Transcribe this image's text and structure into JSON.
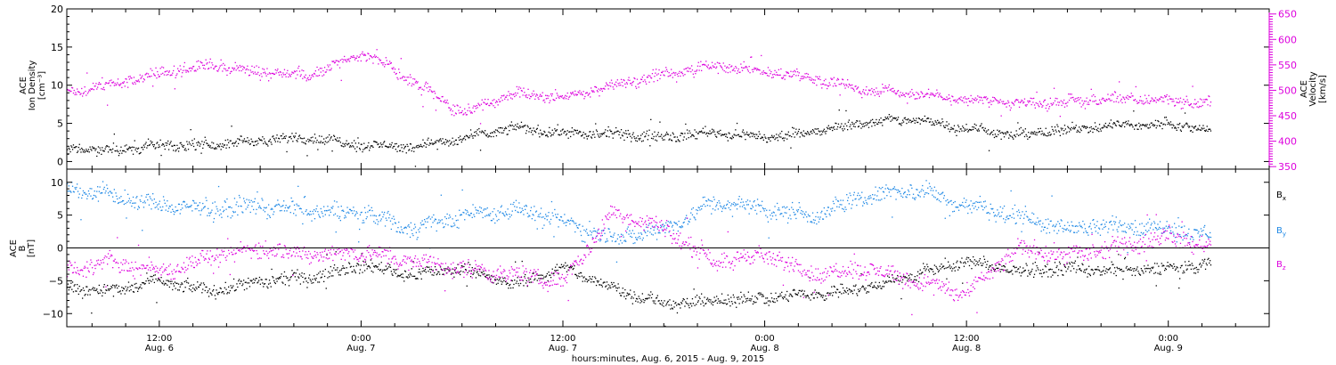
{
  "colors": {
    "density": "#000000",
    "velocity": "#dd00dd",
    "bx": "#000000",
    "by": "#1e88e5",
    "bz": "#dd00dd",
    "axis": "#000000"
  },
  "xaxis": {
    "title": "hours:minutes, Aug.  6, 2015 - Aug.  9, 2015",
    "range_hours_from_aug6_0000": [
      6.5,
      78.0
    ],
    "tick_labels": [
      {
        "time": "12:00",
        "date": "Aug. 6"
      },
      {
        "time": "0:00",
        "date": "Aug. 7"
      },
      {
        "time": "12:00",
        "date": "Aug. 7"
      },
      {
        "time": "0:00",
        "date": "Aug. 8"
      },
      {
        "time": "12:00",
        "date": "Aug. 8"
      },
      {
        "time": "0:00",
        "date": "Aug. 9"
      }
    ]
  },
  "top_panel": {
    "left_axis_label": [
      "ACE",
      "Ion Density",
      "[cm⁻³]"
    ],
    "right_axis_label": [
      "ACE",
      "Velocity",
      "[km/s]"
    ],
    "left_ticks": [
      "0",
      "5",
      "10",
      "15",
      "20"
    ],
    "right_ticks": [
      "350",
      "400",
      "450",
      "500",
      "550",
      "600",
      "650"
    ]
  },
  "bottom_panel": {
    "left_axis_label": [
      "ACE",
      "B",
      "[nT]"
    ],
    "left_ticks": [
      "−10",
      "−5",
      "0",
      "5",
      "10"
    ],
    "legend": [
      {
        "label": "B",
        "sub": "x",
        "color_key": "bx"
      },
      {
        "label": "B",
        "sub": "y",
        "color_key": "by"
      },
      {
        "label": "B",
        "sub": "z",
        "color_key": "bz"
      }
    ]
  },
  "chart_data": [
    {
      "type": "scatter",
      "title": "",
      "xlabel": "hours:minutes, Aug.  6, 2015 - Aug.  9, 2015",
      "ylabel": "ACE Ion Density [cm⁻³]",
      "y2label": "ACE Velocity [km/s]",
      "xlim": [
        "2015-08-06 06:30",
        "2015-08-09 06:00"
      ],
      "ylim": [
        -1,
        20
      ],
      "y2lim": [
        345,
        660
      ],
      "grid": false,
      "data_end": "2015-08-09 02:30",
      "series": [
        {
          "name": "Ion Density",
          "color": "#000000",
          "axis": "left",
          "x": [
            "2015-08-06 07:00",
            "2015-08-06 09:00",
            "2015-08-06 12:00",
            "2015-08-06 15:00",
            "2015-08-06 18:00",
            "2015-08-06 21:00",
            "2015-08-07 00:00",
            "2015-08-07 03:00",
            "2015-08-07 06:00",
            "2015-08-07 09:00",
            "2015-08-07 12:00",
            "2015-08-07 15:00",
            "2015-08-07 18:00",
            "2015-08-07 21:00",
            "2015-08-08 00:00",
            "2015-08-08 03:00",
            "2015-08-08 06:00",
            "2015-08-08 09:00",
            "2015-08-08 12:00",
            "2015-08-08 15:00",
            "2015-08-08 18:00",
            "2015-08-08 21:00",
            "2015-08-09 00:00",
            "2015-08-09 02:30"
          ],
          "values": [
            1.8,
            1.6,
            2.1,
            2.3,
            2.8,
            3.2,
            2.2,
            2.0,
            3.0,
            4.5,
            3.8,
            3.6,
            3.3,
            3.9,
            3.2,
            4.0,
            5.2,
            5.6,
            4.4,
            3.5,
            4.3,
            4.8,
            5.0,
            4.2
          ]
        },
        {
          "name": "Velocity",
          "color": "#dd00dd",
          "axis": "right",
          "x": [
            "2015-08-06 07:00",
            "2015-08-06 09:00",
            "2015-08-06 12:00",
            "2015-08-06 15:00",
            "2015-08-06 18:00",
            "2015-08-06 21:00",
            "2015-08-07 00:00",
            "2015-08-07 03:00",
            "2015-08-07 06:00",
            "2015-08-07 09:00",
            "2015-08-07 12:00",
            "2015-08-07 15:00",
            "2015-08-07 18:00",
            "2015-08-07 21:00",
            "2015-08-08 00:00",
            "2015-08-08 03:00",
            "2015-08-08 06:00",
            "2015-08-08 09:00",
            "2015-08-08 12:00",
            "2015-08-08 15:00",
            "2015-08-08 18:00",
            "2015-08-08 21:00",
            "2015-08-09 00:00",
            "2015-08-09 02:30"
          ],
          "values": [
            500,
            512,
            535,
            548,
            538,
            532,
            575,
            520,
            455,
            495,
            488,
            510,
            532,
            548,
            538,
            525,
            502,
            495,
            482,
            475,
            478,
            485,
            482,
            473
          ]
        }
      ]
    },
    {
      "type": "scatter",
      "title": "",
      "xlabel": "hours:minutes, Aug.  6, 2015 - Aug.  9, 2015",
      "ylabel": "ACE B [nT]",
      "xlim": [
        "2015-08-06 06:30",
        "2015-08-09 06:00"
      ],
      "ylim": [
        -12,
        12
      ],
      "zero_line": true,
      "grid": false,
      "data_end": "2015-08-09 02:30",
      "series": [
        {
          "name": "Bx",
          "color": "#000000",
          "x": [
            "2015-08-06 07:00",
            "2015-08-06 09:00",
            "2015-08-06 12:00",
            "2015-08-06 15:00",
            "2015-08-06 18:00",
            "2015-08-06 21:00",
            "2015-08-07 00:00",
            "2015-08-07 03:00",
            "2015-08-07 06:00",
            "2015-08-07 09:00",
            "2015-08-07 12:00",
            "2015-08-07 15:00",
            "2015-08-07 18:00",
            "2015-08-07 21:00",
            "2015-08-08 00:00",
            "2015-08-08 03:00",
            "2015-08-08 06:00",
            "2015-08-08 09:00",
            "2015-08-08 12:00",
            "2015-08-08 15:00",
            "2015-08-08 18:00",
            "2015-08-08 21:00",
            "2015-08-09 00:00",
            "2015-08-09 02:30"
          ],
          "values": [
            -6,
            -6.5,
            -5,
            -6.5,
            -5,
            -4.5,
            -2.5,
            -4,
            -3,
            -5.5,
            -3,
            -6,
            -8.5,
            -8,
            -7.5,
            -7,
            -6,
            -4,
            -2,
            -3.5,
            -3,
            -3.5,
            -3,
            -2.5
          ]
        },
        {
          "name": "By",
          "color": "#1e88e5",
          "x": [
            "2015-08-06 07:00",
            "2015-08-06 09:00",
            "2015-08-06 12:00",
            "2015-08-06 15:00",
            "2015-08-06 18:00",
            "2015-08-06 21:00",
            "2015-08-07 00:00",
            "2015-08-07 03:00",
            "2015-08-07 06:00",
            "2015-08-07 09:00",
            "2015-08-07 12:00",
            "2015-08-07 15:00",
            "2015-08-07 18:00",
            "2015-08-07 21:00",
            "2015-08-08 00:00",
            "2015-08-08 03:00",
            "2015-08-08 06:00",
            "2015-08-08 09:00",
            "2015-08-08 12:00",
            "2015-08-08 15:00",
            "2015-08-08 18:00",
            "2015-08-08 21:00",
            "2015-08-09 00:00",
            "2015-08-09 02:30"
          ],
          "values": [
            9,
            8,
            6.5,
            6,
            6.5,
            5.5,
            5.5,
            3,
            5,
            6,
            4,
            1.5,
            3,
            7,
            6,
            5,
            8,
            9,
            6.5,
            5,
            3,
            3.5,
            3,
            2
          ]
        },
        {
          "name": "Bz",
          "color": "#dd00dd",
          "x": [
            "2015-08-06 07:00",
            "2015-08-06 09:00",
            "2015-08-06 12:00",
            "2015-08-06 15:00",
            "2015-08-06 18:00",
            "2015-08-06 21:00",
            "2015-08-07 00:00",
            "2015-08-07 03:00",
            "2015-08-07 06:00",
            "2015-08-07 09:00",
            "2015-08-07 12:00",
            "2015-08-07 15:00",
            "2015-08-07 18:00",
            "2015-08-07 21:00",
            "2015-08-08 00:00",
            "2015-08-08 03:00",
            "2015-08-08 06:00",
            "2015-08-08 09:00",
            "2015-08-08 12:00",
            "2015-08-08 15:00",
            "2015-08-08 18:00",
            "2015-08-08 21:00",
            "2015-08-09 00:00",
            "2015-08-09 02:30"
          ],
          "values": [
            -3,
            -2,
            -3.5,
            -1.5,
            0,
            -1,
            -0.5,
            -2,
            -3,
            -4,
            -5,
            5.5,
            3,
            -2,
            -1,
            -4,
            -3,
            -5,
            -7,
            0,
            -1,
            0,
            2,
            0
          ]
        }
      ]
    }
  ]
}
